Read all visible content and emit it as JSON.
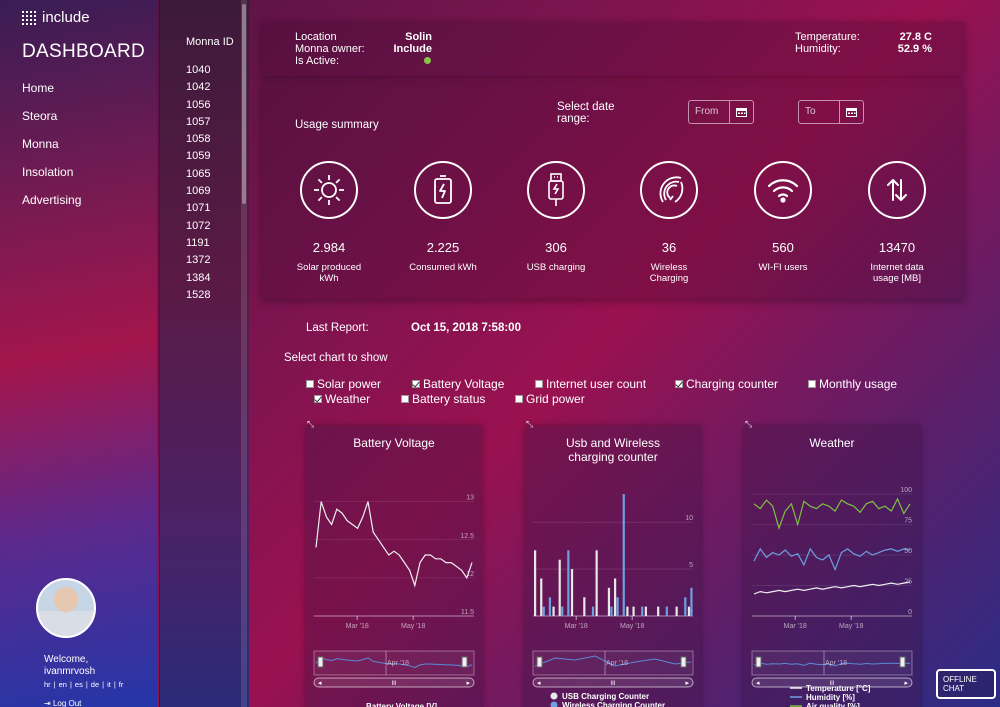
{
  "brand": {
    "logo_text": "include",
    "dashboard_title": "DASHBOARD"
  },
  "nav": [
    "Home",
    "Steora",
    "Monna",
    "Insolation",
    "Advertising"
  ],
  "user": {
    "welcome": "Welcome,",
    "username": "ivanmrvosh",
    "languages": [
      "hr",
      "en",
      "es",
      "de",
      "it",
      "fr"
    ],
    "logout": "Log Out"
  },
  "id_list": {
    "header": "Monna ID",
    "ids": [
      "1040",
      "1042",
      "1056",
      "1057",
      "1058",
      "1059",
      "1065",
      "1069",
      "1071",
      "1072",
      "1191",
      "1372",
      "1384",
      "1528"
    ]
  },
  "info": {
    "location_label": "Location",
    "location_value": "Solin",
    "owner_label": "Monna owner:",
    "owner_value": "Include",
    "active_label": "Is Active:",
    "active_color": "#8bc34a",
    "temperature_label": "Temperature:",
    "temperature_value": "27.8 C",
    "humidity_label": "Humidity:",
    "humidity_value": "52.9 %"
  },
  "usage": {
    "title": "Usage summary",
    "date_range_label": "Select date range:",
    "from_placeholder": "From",
    "to_placeholder": "To",
    "stats": [
      {
        "icon": "sun-icon",
        "value": "2.984",
        "label": "Solar produced kWh"
      },
      {
        "icon": "battery-icon",
        "value": "2.225",
        "label": "Consumed kWh"
      },
      {
        "icon": "usb-icon",
        "value": "306",
        "label": "USB charging"
      },
      {
        "icon": "wireless-charging-icon",
        "value": "36",
        "label": "Wireless Charging"
      },
      {
        "icon": "wifi-icon",
        "value": "560",
        "label": "WI-FI users"
      },
      {
        "icon": "data-transfer-icon",
        "value": "13470",
        "label": "Internet data usage [MB]"
      }
    ]
  },
  "report": {
    "label": "Last Report:",
    "value": "Oct 15, 2018 7:58:00"
  },
  "chart_select": {
    "label": "Select chart to show",
    "options": [
      {
        "label": "Solar power",
        "checked": false
      },
      {
        "label": "Battery Voltage",
        "checked": true
      },
      {
        "label": "Internet user count",
        "checked": false
      },
      {
        "label": "Charging counter",
        "checked": true
      },
      {
        "label": "Monthly usage",
        "checked": false
      },
      {
        "label": "Weather",
        "checked": true
      },
      {
        "label": "Battery status",
        "checked": false
      },
      {
        "label": "Grid power",
        "checked": false
      }
    ]
  },
  "offline_chat": "OFFLINE CHAT",
  "chart_data": [
    {
      "type": "line",
      "title": "Battery Voltage",
      "x_ticks": [
        "Mar '18",
        "May '18"
      ],
      "y_ticks": [
        "11.5",
        "12",
        "12.5",
        "13"
      ],
      "ylim": [
        11.5,
        13.1
      ],
      "navigator_label": "Apr '18",
      "legend": [
        "Battery Voltage [V]"
      ],
      "series": [
        {
          "values": [
            12.4,
            13.0,
            12.8,
            12.7,
            12.9,
            12.85,
            12.75,
            12.7,
            12.65,
            12.8,
            13.0,
            12.6,
            12.5,
            12.4,
            12.3,
            12.35,
            12.3,
            12.2,
            12.1,
            11.9,
            12.2,
            12.3,
            12.3,
            12.25,
            12.25,
            12.2,
            12.2,
            12.15,
            12.1,
            12.0,
            12.2
          ]
        }
      ]
    },
    {
      "type": "bar",
      "title": "Usb and Wireless charging counter",
      "x_ticks": [
        "Mar '18",
        "May '18"
      ],
      "y_ticks": [
        "0",
        "5",
        "10"
      ],
      "ylim": [
        0,
        13
      ],
      "navigator_label": "Apr '18",
      "legend": [
        "USB Charging Counter",
        "Wireless Charging Counter"
      ],
      "series": [
        {
          "name": "USB Charging Counter",
          "values": [
            7,
            4,
            0,
            1,
            6,
            0,
            5,
            0,
            2,
            0,
            7,
            0,
            3,
            4,
            0,
            1,
            1,
            0,
            1,
            0,
            1,
            0,
            0,
            1,
            0,
            1
          ]
        },
        {
          "name": "Wireless Charging Counter",
          "values": [
            0,
            1,
            2,
            0,
            1,
            7,
            0,
            0,
            0,
            1,
            0,
            0,
            1,
            2,
            13,
            0,
            0,
            1,
            0,
            0,
            0,
            1,
            0,
            0,
            2,
            3
          ]
        }
      ]
    },
    {
      "type": "line",
      "title": "Weather",
      "x_ticks": [
        "Mar '18",
        "May '18"
      ],
      "y_ticks": [
        "0",
        "25",
        "50",
        "75",
        "100"
      ],
      "ylim": [
        0,
        100
      ],
      "navigator_label": "Apr '18",
      "legend": [
        "Temperature [°C]",
        "Humidity [%]",
        "Air quality [%]"
      ],
      "series": [
        {
          "name": "Temperature [°C]",
          "color": "#f0f0f0",
          "values": [
            18,
            20,
            19,
            20,
            21,
            20,
            21,
            22,
            21,
            22,
            23,
            22,
            23,
            24,
            23,
            24,
            25,
            24,
            25,
            26,
            25,
            26,
            27,
            26,
            27,
            28
          ]
        },
        {
          "name": "Humidity [%]",
          "color": "#6e9fe0",
          "values": [
            45,
            55,
            48,
            52,
            50,
            54,
            49,
            51,
            42,
            55,
            48,
            46,
            50,
            38,
            52,
            55,
            51,
            49,
            53,
            50,
            52,
            54,
            55,
            53,
            55,
            54
          ]
        },
        {
          "name": "Air quality [%]",
          "color": "#7cc142",
          "values": [
            92,
            88,
            95,
            90,
            72,
            86,
            92,
            75,
            94,
            90,
            88,
            92,
            90,
            86,
            95,
            92,
            90,
            85,
            92,
            94,
            88,
            90,
            86,
            96,
            84,
            92
          ]
        }
      ]
    }
  ]
}
